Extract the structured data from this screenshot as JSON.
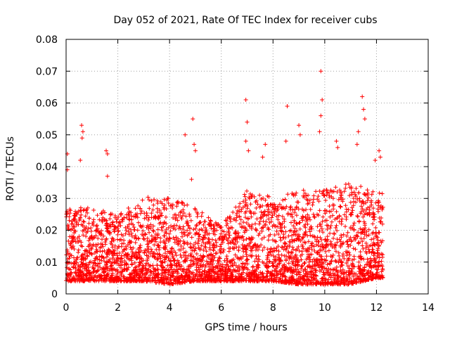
{
  "chart_data": {
    "type": "scatter",
    "title": "Day 052 of 2021, Rate Of TEC Index for receiver cubs",
    "xlabel": "GPS time / hours",
    "ylabel": "ROTI / TECUs",
    "xlim": [
      0,
      14
    ],
    "ylim": [
      0,
      0.08
    ],
    "xticks": [
      0,
      2,
      4,
      6,
      8,
      10,
      12,
      14
    ],
    "xtick_labels": [
      "0",
      "2",
      "4",
      "6",
      "8",
      "10",
      "12",
      "14"
    ],
    "yticks": [
      0,
      0.01,
      0.02,
      0.03,
      0.04,
      0.05,
      0.06,
      0.07,
      0.08
    ],
    "ytick_labels": [
      "0",
      "0.01",
      "0.02",
      "0.03",
      "0.04",
      "0.05",
      "0.06",
      "0.07",
      "0.08"
    ],
    "grid": true,
    "marker": "+",
    "color": "#ff0000",
    "x_extent": [
      0,
      12.25
    ],
    "band_profile": {
      "x": [
        0,
        1,
        2,
        3,
        4,
        5,
        6,
        7,
        8,
        9,
        10,
        11,
        12
      ],
      "y_low": [
        0.004,
        0.004,
        0.004,
        0.004,
        0.003,
        0.004,
        0.004,
        0.004,
        0.004,
        0.003,
        0.003,
        0.003,
        0.005
      ],
      "y_typical_high": [
        0.025,
        0.025,
        0.023,
        0.028,
        0.028,
        0.025,
        0.02,
        0.03,
        0.028,
        0.03,
        0.03,
        0.032,
        0.03
      ]
    },
    "notable_points": [
      {
        "x": 0.05,
        "y": 0.044
      },
      {
        "x": 0.05,
        "y": 0.039
      },
      {
        "x": 0.6,
        "y": 0.053
      },
      {
        "x": 0.65,
        "y": 0.051
      },
      {
        "x": 0.62,
        "y": 0.049
      },
      {
        "x": 0.55,
        "y": 0.042
      },
      {
        "x": 1.55,
        "y": 0.045
      },
      {
        "x": 1.6,
        "y": 0.044
      },
      {
        "x": 1.6,
        "y": 0.037
      },
      {
        "x": 4.6,
        "y": 0.05
      },
      {
        "x": 4.9,
        "y": 0.055
      },
      {
        "x": 4.95,
        "y": 0.047
      },
      {
        "x": 5.0,
        "y": 0.045
      },
      {
        "x": 4.85,
        "y": 0.036
      },
      {
        "x": 6.95,
        "y": 0.061
      },
      {
        "x": 7.0,
        "y": 0.054
      },
      {
        "x": 6.95,
        "y": 0.048
      },
      {
        "x": 7.05,
        "y": 0.045
      },
      {
        "x": 7.7,
        "y": 0.047
      },
      {
        "x": 7.6,
        "y": 0.043
      },
      {
        "x": 8.55,
        "y": 0.059
      },
      {
        "x": 8.5,
        "y": 0.048
      },
      {
        "x": 9.0,
        "y": 0.053
      },
      {
        "x": 9.05,
        "y": 0.05
      },
      {
        "x": 9.85,
        "y": 0.07
      },
      {
        "x": 9.9,
        "y": 0.061
      },
      {
        "x": 9.85,
        "y": 0.056
      },
      {
        "x": 9.8,
        "y": 0.051
      },
      {
        "x": 10.45,
        "y": 0.048
      },
      {
        "x": 10.5,
        "y": 0.046
      },
      {
        "x": 11.3,
        "y": 0.051
      },
      {
        "x": 11.25,
        "y": 0.047
      },
      {
        "x": 11.45,
        "y": 0.062
      },
      {
        "x": 11.5,
        "y": 0.058
      },
      {
        "x": 11.55,
        "y": 0.055
      },
      {
        "x": 11.95,
        "y": 0.042
      },
      {
        "x": 12.1,
        "y": 0.045
      },
      {
        "x": 12.15,
        "y": 0.043
      }
    ]
  }
}
